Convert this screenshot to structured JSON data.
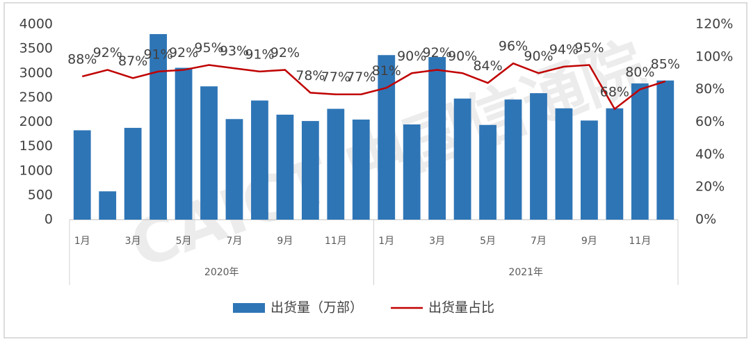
{
  "chart_data": {
    "type": "bar-line",
    "categories": [
      "1月",
      null,
      "3月",
      null,
      "5月",
      null,
      "7月",
      null,
      "9月",
      null,
      "11月",
      null,
      "1月",
      null,
      "3月",
      null,
      "5月",
      null,
      "7月",
      null,
      "9月",
      null,
      "11月",
      null
    ],
    "x_groups": [
      "2020年",
      "2021年"
    ],
    "series": [
      {
        "name": "出货量（万部）",
        "type": "bar",
        "color": "#2e75b6",
        "values": [
          1830,
          580,
          1880,
          3800,
          3110,
          2730,
          2060,
          2440,
          2150,
          2020,
          2270,
          2050,
          3370,
          1950,
          3330,
          2480,
          1940,
          2460,
          2590,
          2280,
          2030,
          2280,
          2790,
          2850
        ]
      },
      {
        "name": "出货量占比",
        "type": "line",
        "axis": "y2",
        "color": "#c00000",
        "values": [
          88,
          92,
          87,
          91,
          92,
          95,
          93,
          91,
          92,
          78,
          77,
          77,
          81,
          90,
          92,
          90,
          84,
          96,
          90,
          94,
          95,
          68,
          80,
          85
        ],
        "value_labels": [
          "88%",
          "92%",
          "87%",
          "91%",
          "92%",
          "95%",
          "93%",
          "91%",
          "92%",
          "78%",
          "77%",
          "77%",
          "81%",
          "90%",
          "92%",
          "90%",
          "84%",
          "96%",
          "90%",
          "94%",
          "95%",
          "68%",
          "80%",
          "85%"
        ]
      }
    ],
    "ylim": [
      0,
      4000
    ],
    "yticks": [
      0,
      500,
      1000,
      1500,
      2000,
      2500,
      3000,
      3500,
      4000
    ],
    "y2lim": [
      0,
      120
    ],
    "y2ticks": [
      {
        "value": 0,
        "label": "0%"
      },
      {
        "value": 20,
        "label": "20%"
      },
      {
        "value": 40,
        "label": "40%"
      },
      {
        "value": 60,
        "label": "60%"
      },
      {
        "value": 80,
        "label": "80%"
      },
      {
        "value": 100,
        "label": "100%"
      },
      {
        "value": 120,
        "label": "120%"
      }
    ],
    "legend": "bottom",
    "watermark": "CAICT 中国信通院"
  }
}
